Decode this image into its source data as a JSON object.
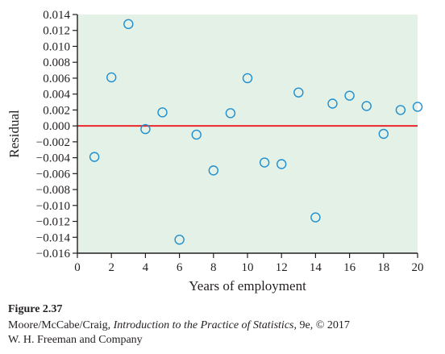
{
  "chart_data": {
    "type": "scatter",
    "xlabel": "Years of employment",
    "ylabel": "Residual",
    "xlim": [
      0,
      20
    ],
    "ylim": [
      -0.016,
      0.014
    ],
    "x_ticks": [
      "0",
      "2",
      "4",
      "6",
      "8",
      "10",
      "12",
      "14",
      "16",
      "18",
      "20"
    ],
    "y_ticks": [
      "0.014",
      "0.012",
      "0.010",
      "0.008",
      "0.006",
      "0.004",
      "0.002",
      "0.000",
      "−0.002",
      "−0.004",
      "−0.006",
      "−0.008",
      "−0.010",
      "−0.012",
      "−0.014",
      "−0.016"
    ],
    "x": [
      1,
      2,
      3,
      4,
      5,
      6,
      7,
      8,
      9,
      10,
      11,
      12,
      13,
      14,
      15,
      16,
      17,
      18,
      19,
      20
    ],
    "y": [
      -0.0039,
      0.0061,
      0.0128,
      -0.0004,
      0.0017,
      -0.0143,
      -0.0011,
      -0.0056,
      0.0016,
      0.006,
      -0.0046,
      -0.0048,
      0.0042,
      -0.0115,
      0.0028,
      0.0038,
      0.0025,
      -0.001,
      0.002,
      0.0024
    ],
    "reference_line_y": 0,
    "grid": false,
    "colors": {
      "plot_background": "#e3f1e6",
      "marker": "#1f8fd0",
      "reference_line": "#e8262b"
    }
  },
  "caption": {
    "figure_label": "Figure 2.37",
    "credit_before_title": "Moore/McCabe/Craig, ",
    "book_title": "Introduction to the Practice of Statistics",
    "credit_after_title": ", 9e, © 2017",
    "credit_line2": "W. H. Freeman and Company"
  }
}
